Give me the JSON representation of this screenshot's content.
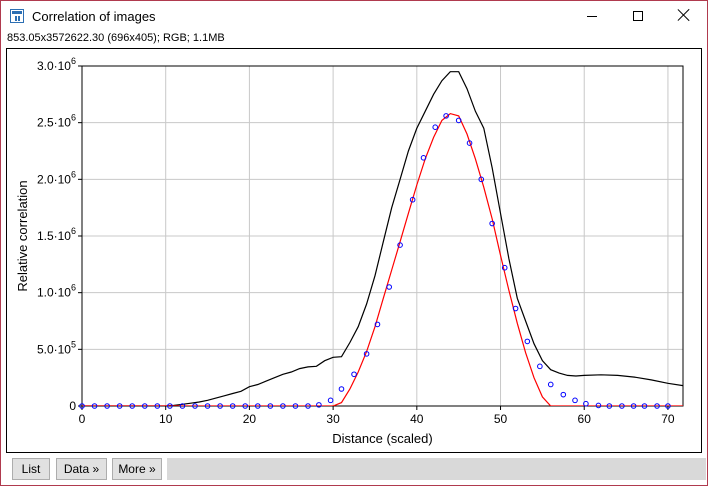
{
  "window": {
    "title": "Correlation of images",
    "icon": "imagej-icon",
    "controls": [
      "minimize-icon",
      "maximize-icon",
      "close-icon"
    ]
  },
  "info_line": "853.05x3572622.30  (696x405); RGB; 1.1MB",
  "buttons": {
    "list": "List",
    "data": "Data »",
    "more": "More »"
  },
  "colors": {
    "border": "#b03a4e",
    "profile_line": "#000000",
    "fit_line": "#ff0000",
    "points": "#0000ff",
    "grid": "#c8c8c8"
  },
  "chart_data": {
    "type": "line",
    "xlabel": "Distance (scaled)",
    "ylabel": "Relative correlation",
    "xlim": [
      0,
      71.8
    ],
    "ylim": [
      0,
      3000000
    ],
    "grid": true,
    "x_ticks": [
      0,
      10,
      20,
      30,
      40,
      50,
      60,
      70
    ],
    "x_tick_labels": [
      "0",
      "10",
      "20",
      "30",
      "40",
      "50",
      "60",
      "70"
    ],
    "y_ticks": [
      0,
      500000,
      1000000,
      1500000,
      2000000,
      2500000,
      3000000
    ],
    "y_tick_labels": [
      {
        "mantissa": "0",
        "exp": ""
      },
      {
        "mantissa": "5.0·10",
        "exp": "5"
      },
      {
        "mantissa": "1.0·10",
        "exp": "6"
      },
      {
        "mantissa": "1.5·10",
        "exp": "6"
      },
      {
        "mantissa": "2.0·10",
        "exp": "6"
      },
      {
        "mantissa": "2.5·10",
        "exp": "6"
      },
      {
        "mantissa": "3.0·10",
        "exp": "6"
      }
    ],
    "series": [
      {
        "style": "line",
        "color": "#000000",
        "x": [
          0,
          10,
          11,
          12,
          13,
          14,
          15,
          16,
          17,
          18,
          19,
          20,
          21,
          22,
          23,
          24,
          25,
          26,
          27,
          28,
          29,
          30,
          31,
          32,
          33,
          34,
          35,
          36,
          37,
          38,
          39,
          40,
          41,
          42,
          43,
          44,
          45,
          46,
          47,
          48,
          49,
          50,
          51,
          52,
          53,
          54,
          55,
          56,
          57,
          58,
          59,
          60,
          62,
          64,
          66,
          68,
          70,
          71.8
        ],
        "y": [
          0,
          0,
          5000,
          15000,
          25000,
          35000,
          50000,
          70000,
          90000,
          110000,
          130000,
          170000,
          190000,
          220000,
          250000,
          280000,
          300000,
          330000,
          345000,
          350000,
          400000,
          430000,
          435000,
          560000,
          700000,
          900000,
          1150000,
          1450000,
          1750000,
          2000000,
          2250000,
          2450000,
          2600000,
          2750000,
          2870000,
          2950000,
          2950000,
          2800000,
          2600000,
          2450000,
          2100000,
          1700000,
          1300000,
          950000,
          750000,
          550000,
          400000,
          320000,
          290000,
          270000,
          265000,
          270000,
          275000,
          270000,
          255000,
          230000,
          200000,
          180000
        ]
      },
      {
        "style": "line",
        "color": "#ff0000",
        "x": [
          0,
          30,
          31,
          32,
          33,
          34,
          35,
          36,
          37,
          38,
          39,
          40,
          41,
          42,
          43,
          44,
          45,
          46,
          47,
          48,
          49,
          50,
          51,
          52,
          53,
          54,
          55,
          56,
          57,
          71.8
        ],
        "y": [
          0,
          0,
          30000,
          150000,
          300000,
          480000,
          700000,
          950000,
          1200000,
          1450000,
          1700000,
          1950000,
          2180000,
          2370000,
          2520000,
          2580000,
          2560000,
          2400000,
          2180000,
          1930000,
          1650000,
          1330000,
          1020000,
          730000,
          470000,
          250000,
          80000,
          0,
          0,
          0
        ]
      },
      {
        "style": "points",
        "color": "#0000ff",
        "x": [
          0,
          1.5,
          3,
          4.5,
          6,
          7.5,
          9,
          10.5,
          12,
          13.5,
          15,
          16.5,
          18,
          19.5,
          21,
          22.5,
          24,
          25.5,
          27,
          28.3,
          29.7,
          31,
          32.5,
          34,
          35.3,
          36.7,
          38,
          39.5,
          40.8,
          42.2,
          43.5,
          45,
          46.3,
          47.7,
          49,
          50.5,
          51.8,
          53.2,
          54.7,
          56,
          57.5,
          58.9,
          60.2,
          61.7,
          63,
          64.5,
          65.9,
          67.2,
          68.7,
          70
        ],
        "y": [
          0,
          0,
          0,
          0,
          0,
          0,
          0,
          0,
          0,
          0,
          0,
          0,
          0,
          0,
          0,
          0,
          0,
          0,
          0,
          10000,
          50000,
          150000,
          280000,
          460000,
          720000,
          1050000,
          1420000,
          1820000,
          2190000,
          2460000,
          2560000,
          2520000,
          2320000,
          2000000,
          1610000,
          1220000,
          860000,
          570000,
          350000,
          190000,
          100000,
          50000,
          20000,
          5000,
          0,
          0,
          0,
          0,
          0,
          0
        ]
      }
    ]
  }
}
